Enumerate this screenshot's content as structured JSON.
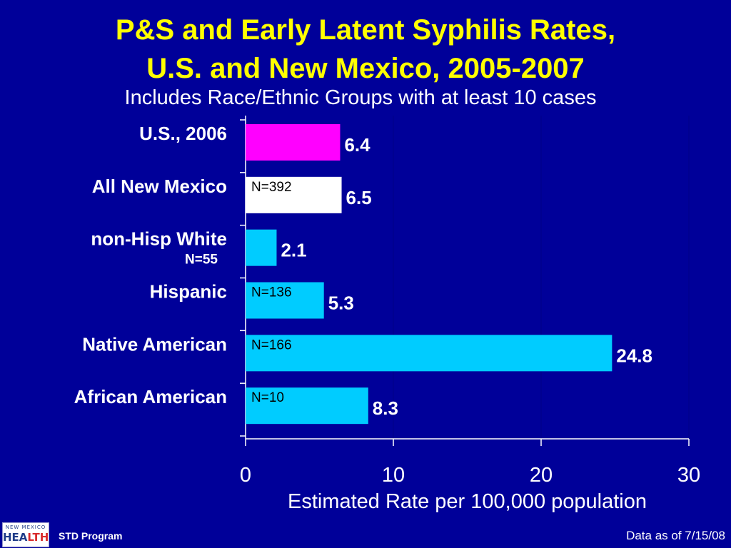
{
  "slide": {
    "title_line1": "P&S and Early Latent Syphilis Rates,",
    "title_line2": "U.S. and New Mexico, 2005-2007",
    "subtitle": "Includes Race/Ethnic Groups with at least 10 cases"
  },
  "footer": {
    "program_label": "STD Program",
    "data_note": "Data as of 7/15/08",
    "logo_text_top": "NEW MEXICO",
    "logo_text_main_1": "HEA",
    "logo_text_main_2": "LTH"
  },
  "colors": {
    "background": "#000099",
    "title": "#ffff00",
    "text": "#ffffff",
    "bar_us": "#ff00ff",
    "bar_nm": "#ffffff",
    "bar_group": "#00ccff",
    "bar_label_inside": "#000000"
  },
  "chart_data": {
    "type": "bar",
    "orientation": "horizontal",
    "xlabel": "Estimated Rate per 100,000 population",
    "xlim": [
      0,
      30
    ],
    "xticks": [
      0,
      10,
      20,
      30
    ],
    "grid": true,
    "legend": "none",
    "categories": [
      "U.S., 2006",
      "All New Mexico",
      "non-Hisp White",
      "Hispanic",
      "Native American",
      "African American"
    ],
    "values": [
      6.4,
      6.5,
      2.1,
      5.3,
      24.8,
      8.3
    ],
    "value_labels": [
      "6.4",
      "6.5",
      "2.1",
      "5.3",
      "24.8",
      "8.3"
    ],
    "n_labels": [
      "",
      "N=392",
      "N=55",
      "N=136",
      "N=166",
      "N=10"
    ],
    "n_label_placement": [
      "none",
      "inside",
      "below-category",
      "inside",
      "inside",
      "inside"
    ],
    "bar_colors": [
      "#ff00ff",
      "#ffffff",
      "#00ccff",
      "#00ccff",
      "#00ccff",
      "#00ccff"
    ]
  }
}
